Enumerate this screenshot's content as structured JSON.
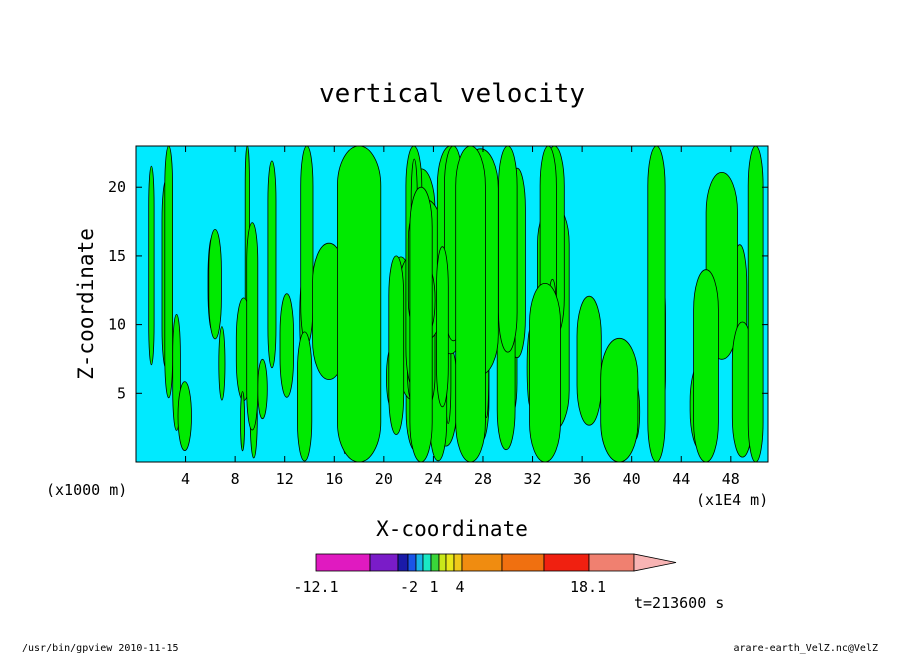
{
  "chart_data": {
    "type": "heatmap",
    "title": "vertical velocity",
    "xlabel": "X-coordinate",
    "ylabel": "Z-coordinate",
    "x_units_left": "(x1000 m)",
    "x_units_right": "(x1E4 m)",
    "x_ticks": [
      "4",
      "8",
      "12",
      "16",
      "20",
      "24",
      "28",
      "32",
      "36",
      "40",
      "44",
      "48"
    ],
    "y_ticks": [
      "5",
      "10",
      "15",
      "20"
    ],
    "xlim": [
      0,
      51
    ],
    "ylim": [
      0,
      23
    ],
    "colorbar": {
      "labels": [
        "-12.1",
        "-2",
        "1",
        "4",
        "18.1"
      ],
      "colors": [
        "#e01ac0",
        "#7a1cc8",
        "#1a1aa8",
        "#1a55e8",
        "#1ab4e8",
        "#1ae8c4",
        "#3ad63a",
        "#c8e81a",
        "#e8e81a",
        "#f0c81a",
        "#f08c10",
        "#f07010",
        "#f02010",
        "#f08070",
        "#f8b4b4"
      ]
    },
    "field_colors": {
      "negative": "#00eaff",
      "positive": "#00ea00"
    },
    "time_label": "t=213600 s"
  },
  "footer": {
    "left": "/usr/bin/gpview  2010-11-15",
    "right": "arare-earth_VelZ.nc@VelZ"
  }
}
